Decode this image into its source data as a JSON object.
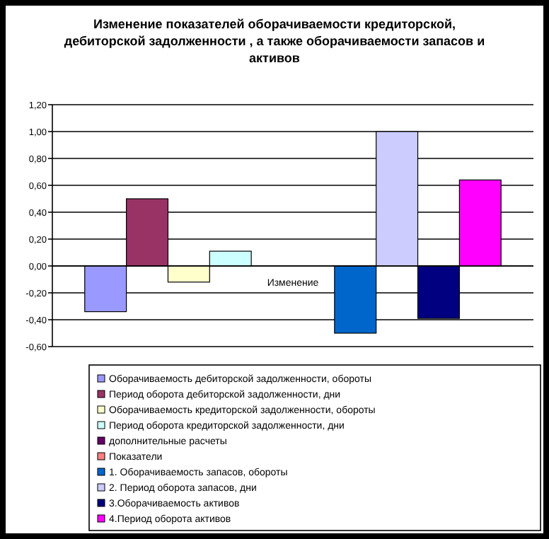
{
  "chart_data": {
    "type": "bar",
    "title": "Изменение показателей оборачиваемости кредиторской, дебиторской задолженности , а также оборачиваемости запасов и активов",
    "categories": [
      "Изменение"
    ],
    "series": [
      {
        "name": "Оборачиваемость дебиторской задолженности, обороты",
        "color": "#9999ff",
        "values": [
          -0.34
        ]
      },
      {
        "name": "Период оборота дебиторской задолженности, дни",
        "color": "#993366",
        "values": [
          0.5
        ]
      },
      {
        "name": "Оборачиваемость кредиторской задолженности, обороты",
        "color": "#ffffcc",
        "values": [
          -0.12
        ]
      },
      {
        "name": "Период оборота кредиторской задолженности, дни",
        "color": "#ccffff",
        "values": [
          0.11
        ]
      },
      {
        "name": "дополнительные расчеты",
        "color": "#660066",
        "values": [
          null
        ]
      },
      {
        "name": "Показатели",
        "color": "#ff8080",
        "values": [
          null
        ]
      },
      {
        "name": "1. Оборачиваемость запасов, обороты",
        "color": "#0066cc",
        "values": [
          -0.5
        ]
      },
      {
        "name": "2. Период оборота запасов, дни",
        "color": "#ccccff",
        "values": [
          1.0
        ]
      },
      {
        "name": "3.Оборачиваемость активов",
        "color": "#000080",
        "values": [
          -0.39
        ]
      },
      {
        "name": "4.Период оборота активов",
        "color": "#ff00ff",
        "values": [
          0.64
        ]
      }
    ],
    "ylim": [
      -0.6,
      1.2
    ],
    "yticks": [
      {
        "value": -0.6,
        "label": "-0,60"
      },
      {
        "value": -0.4,
        "label": "-0,40"
      },
      {
        "value": -0.2,
        "label": "-0,20"
      },
      {
        "value": 0,
        "label": "0,00"
      },
      {
        "value": 0.2,
        "label": "0,20"
      },
      {
        "value": 0.4,
        "label": "0,40"
      },
      {
        "value": 0.6,
        "label": "0,60"
      },
      {
        "value": 0.8,
        "label": "0,80"
      },
      {
        "value": 1.0,
        "label": "1,00"
      },
      {
        "value": 1.2,
        "label": "1,20"
      }
    ],
    "grid": "y",
    "legend": "bottom"
  }
}
